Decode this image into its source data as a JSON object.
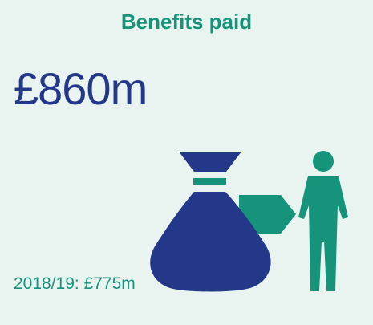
{
  "infographic": {
    "title": "Benefits paid",
    "amount": "£860m",
    "comparison": "2018/19: £775m"
  },
  "icons": {
    "money_bag": "money-bag-icon",
    "arrow": "arrow-right-icon",
    "person": "person-icon"
  },
  "colors": {
    "background": "#e9f4f0",
    "teal": "#16947b",
    "navy": "#24388a"
  }
}
